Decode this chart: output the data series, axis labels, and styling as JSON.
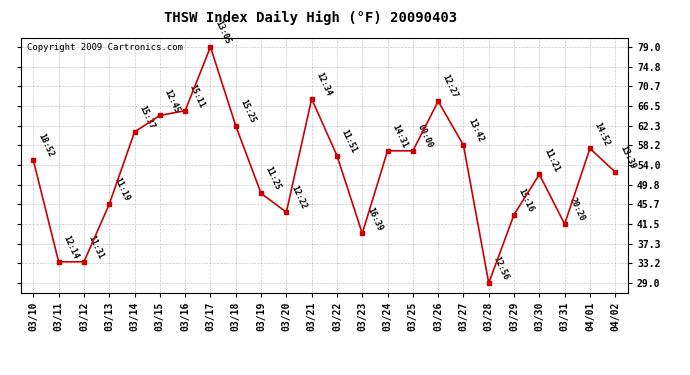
{
  "title": "THSW Index Daily High (°F) 20090403",
  "copyright": "Copyright 2009 Cartronics.com",
  "dates": [
    "03/10",
    "03/11",
    "03/12",
    "03/13",
    "03/14",
    "03/15",
    "03/16",
    "03/17",
    "03/18",
    "03/19",
    "03/20",
    "03/21",
    "03/22",
    "03/23",
    "03/24",
    "03/25",
    "03/26",
    "03/27",
    "03/28",
    "03/29",
    "03/30",
    "03/31",
    "04/01",
    "04/02"
  ],
  "values": [
    55.0,
    33.5,
    33.5,
    45.7,
    61.0,
    64.5,
    65.5,
    79.0,
    62.3,
    48.0,
    44.0,
    68.0,
    56.0,
    39.5,
    57.0,
    57.0,
    67.5,
    58.2,
    29.0,
    43.5,
    52.0,
    41.5,
    57.5,
    52.5
  ],
  "time_labels": [
    "18:52",
    "12:14",
    "11:31",
    "11:19",
    "15:37",
    "12:45",
    "15:11",
    "13:05",
    "15:25",
    "11:25",
    "12:22",
    "12:34",
    "11:51",
    "16:39",
    "14:31",
    "00:00",
    "12:27",
    "13:42",
    "12:56",
    "15:16",
    "11:21",
    "20:20",
    "14:52",
    "13:39"
  ],
  "yticks": [
    29.0,
    33.2,
    37.3,
    41.5,
    45.7,
    49.8,
    54.0,
    58.2,
    62.3,
    66.5,
    70.7,
    74.8,
    79.0
  ],
  "ymin": 27.0,
  "ymax": 81.0,
  "line_color": "#cc0000",
  "marker_color": "#cc0000",
  "bg_color": "#ffffff",
  "plot_bg_color": "#ffffff",
  "grid_color": "#bbbbbb",
  "title_fontsize": 10,
  "tick_fontsize": 7,
  "label_fontsize": 6,
  "copyright_fontsize": 6.5
}
